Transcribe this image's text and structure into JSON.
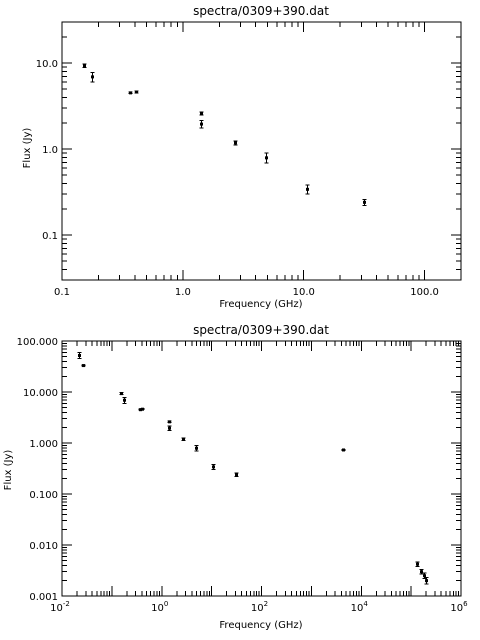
{
  "chart_data": [
    {
      "type": "scatter",
      "title": "spectra/0309+390.dat",
      "xlabel": "Frequency (GHz)",
      "ylabel": "Flux (Jy)",
      "xscale": "log",
      "yscale": "log",
      "xlim": [
        0.1,
        200
      ],
      "ylim": [
        0.03,
        30
      ],
      "xticklabels": [
        "0.1",
        "1.0",
        "10.0",
        "100.0"
      ],
      "xtickvalues": [
        0.1,
        1,
        10,
        100
      ],
      "yticklabels": [
        "0.1",
        "1.0",
        "10.0"
      ],
      "ytickvalues": [
        0.1,
        1,
        10
      ],
      "points": [
        {
          "x": 0.151,
          "y": 9.3,
          "lo": 8.9,
          "hi": 9.7
        },
        {
          "x": 0.178,
          "y": 6.9,
          "lo": 6.0,
          "hi": 7.8
        },
        {
          "x": 0.365,
          "y": 4.5,
          "lo": 4.4,
          "hi": 4.6
        },
        {
          "x": 0.408,
          "y": 4.6,
          "lo": 4.5,
          "hi": 4.7
        },
        {
          "x": 1.4,
          "y": 2.6,
          "lo": 2.5,
          "hi": 2.7
        },
        {
          "x": 1.4,
          "y": 1.95,
          "lo": 1.75,
          "hi": 2.15
        },
        {
          "x": 2.7,
          "y": 1.18,
          "lo": 1.12,
          "hi": 1.24
        },
        {
          "x": 4.85,
          "y": 0.79,
          "lo": 0.69,
          "hi": 0.9
        },
        {
          "x": 10.7,
          "y": 0.34,
          "lo": 0.3,
          "hi": 0.38
        },
        {
          "x": 31.4,
          "y": 0.24,
          "lo": 0.22,
          "hi": 0.26
        }
      ]
    },
    {
      "type": "scatter",
      "title": "spectra/0309+390.dat",
      "xlabel": "Frequency (GHz)",
      "ylabel": "Flux (Jy)",
      "xscale": "log",
      "yscale": "log",
      "xlim": [
        0.01,
        1000000
      ],
      "ylim": [
        0.001,
        100
      ],
      "xticks": [
        {
          "base": "10",
          "exp": "-2",
          "value": 0.01
        },
        {
          "base": "10",
          "exp": "0",
          "value": 1
        },
        {
          "base": "10",
          "exp": "2",
          "value": 100
        },
        {
          "base": "10",
          "exp": "4",
          "value": 10000
        },
        {
          "base": "10",
          "exp": "6",
          "value": 1000000
        }
      ],
      "yticklabels": [
        "0.001",
        "0.010",
        "0.100",
        "1.000",
        "10.000",
        "100.000"
      ],
      "ytickvalues": [
        0.001,
        0.01,
        0.1,
        1,
        10,
        100
      ],
      "points": [
        {
          "x": 0.022,
          "y": 52,
          "lo": 45,
          "hi": 60
        },
        {
          "x": 0.026,
          "y": 33,
          "lo": 32,
          "hi": 34
        },
        {
          "x": 0.151,
          "y": 9.3,
          "lo": 8.9,
          "hi": 9.7
        },
        {
          "x": 0.178,
          "y": 6.9,
          "lo": 6.0,
          "hi": 7.8
        },
        {
          "x": 0.365,
          "y": 4.5,
          "lo": 4.4,
          "hi": 4.6
        },
        {
          "x": 0.408,
          "y": 4.6,
          "lo": 4.5,
          "hi": 4.7
        },
        {
          "x": 1.4,
          "y": 2.6,
          "lo": 2.5,
          "hi": 2.7
        },
        {
          "x": 1.4,
          "y": 1.95,
          "lo": 1.75,
          "hi": 2.15
        },
        {
          "x": 2.7,
          "y": 1.18,
          "lo": 1.12,
          "hi": 1.24
        },
        {
          "x": 4.85,
          "y": 0.79,
          "lo": 0.69,
          "hi": 0.9
        },
        {
          "x": 10.7,
          "y": 0.34,
          "lo": 0.3,
          "hi": 0.38
        },
        {
          "x": 31.4,
          "y": 0.24,
          "lo": 0.22,
          "hi": 0.26
        },
        {
          "x": 4300,
          "y": 0.73,
          "lo": 0.71,
          "hi": 0.75
        },
        {
          "x": 130000,
          "y": 0.0042,
          "lo": 0.0038,
          "hi": 0.0046
        },
        {
          "x": 160000,
          "y": 0.003,
          "lo": 0.0027,
          "hi": 0.0033
        },
        {
          "x": 185000,
          "y": 0.0025,
          "lo": 0.0022,
          "hi": 0.0028
        },
        {
          "x": 200000,
          "y": 0.002,
          "lo": 0.0017,
          "hi": 0.0023
        }
      ]
    }
  ]
}
